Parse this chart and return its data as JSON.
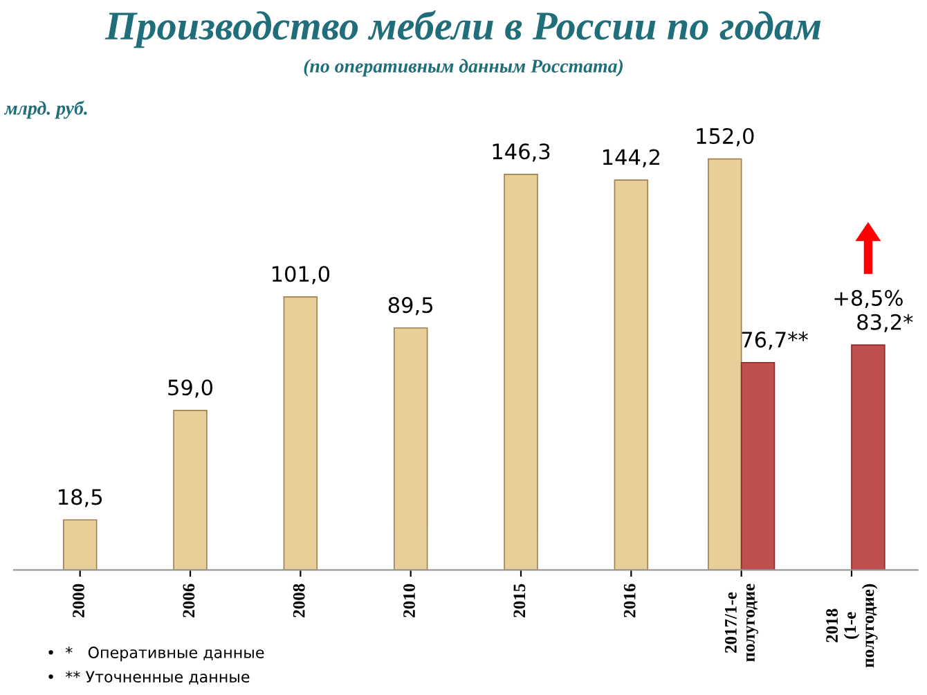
{
  "chart_data": {
    "type": "bar",
    "title": "Производство мебели в России по годам",
    "subtitle": "(по оперативным данным Росстата)",
    "ylabel": "млрд. руб.",
    "categories": [
      "2000",
      "2006",
      "2008",
      "2010",
      "2015",
      "2016",
      "2017/1-е\nполугодие",
      "2018\n(1-е\nполугодие)"
    ],
    "series": [
      {
        "color": "#e8cf9a",
        "values": [
          18.5,
          59.0,
          101.0,
          89.5,
          146.3,
          144.2,
          152.0,
          null
        ],
        "value_labels": [
          "18,5",
          "59,0",
          "101,0",
          "89,5",
          "146,3",
          "144,2",
          "152,0",
          null
        ]
      },
      {
        "color": "#c0504d",
        "values": [
          null,
          null,
          null,
          null,
          null,
          null,
          76.7,
          83.2
        ],
        "value_labels": [
          null,
          null,
          null,
          null,
          null,
          null,
          "76,7**",
          "83,2*"
        ]
      }
    ],
    "grid": false,
    "legend": false,
    "annotations": [
      "+8,5%",
      "•  *   Оперативные данные",
      "•  ** Уточненные данные"
    ]
  }
}
